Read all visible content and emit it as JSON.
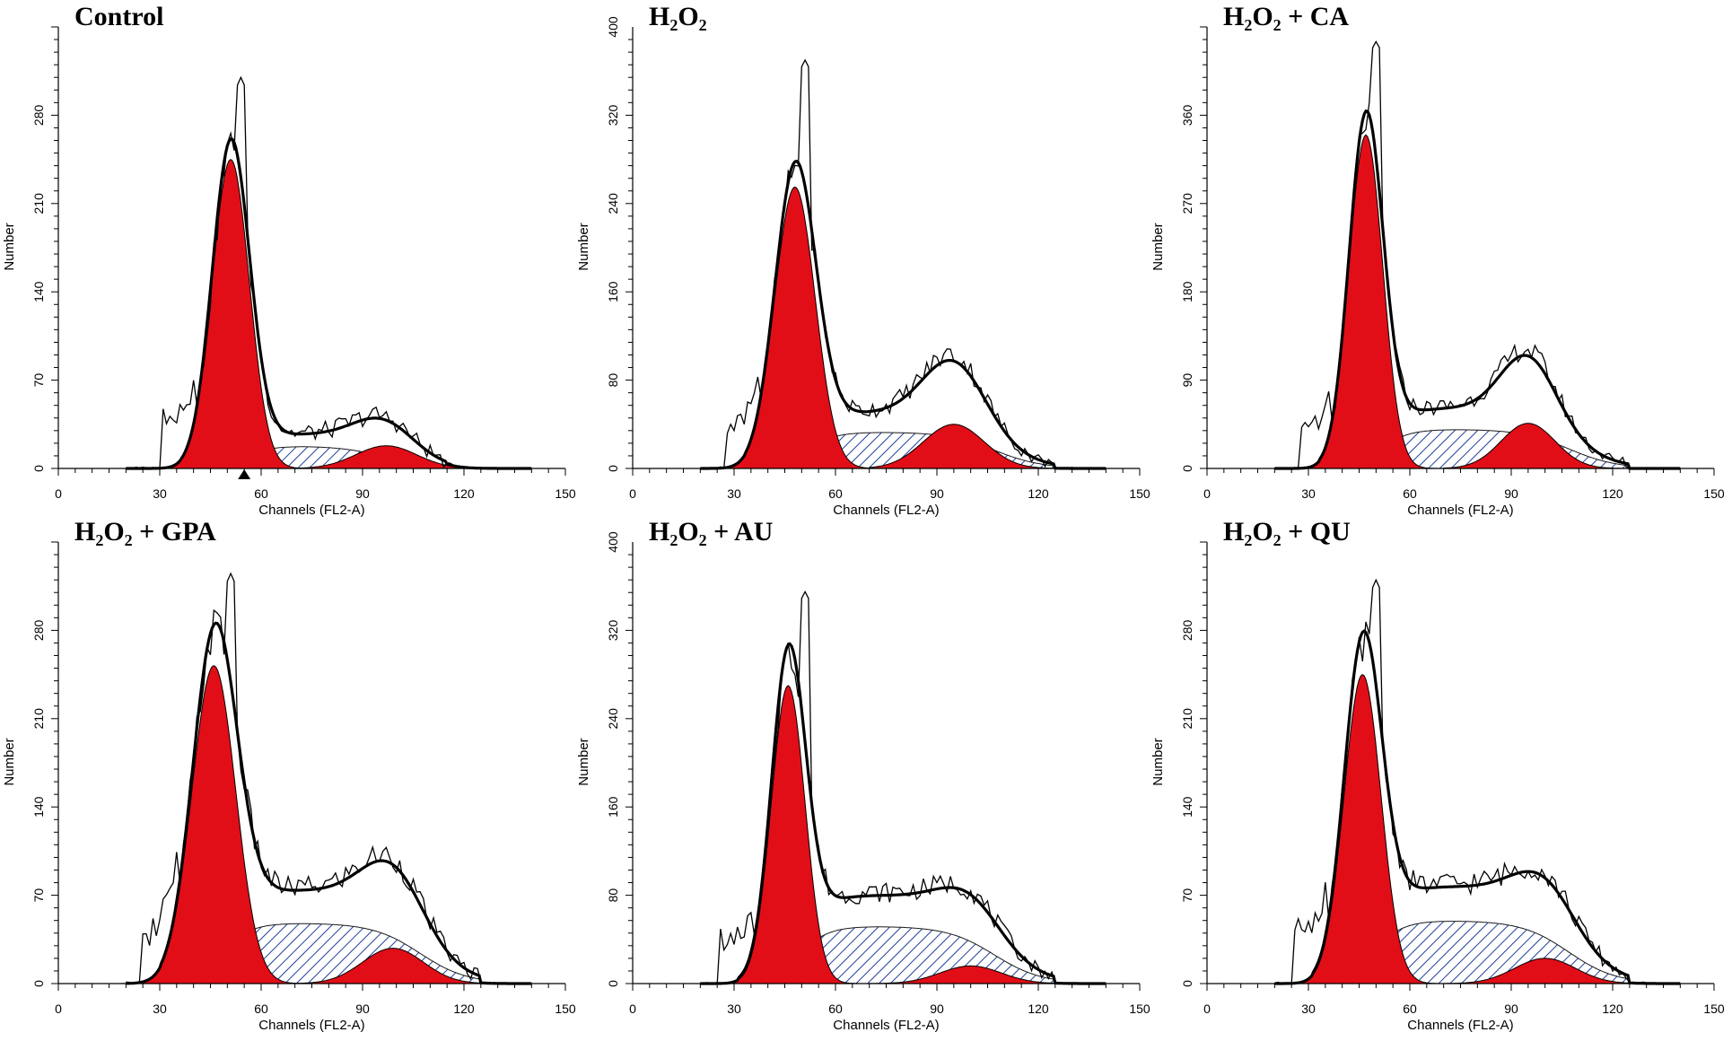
{
  "chart_data": [
    {
      "type": "area",
      "title": "Control",
      "xlabel": "Channels (FL2-A)",
      "ylabel": "Number",
      "xlim": [
        0,
        150
      ],
      "xticks": [
        "0",
        "30",
        "60",
        "90",
        "120",
        "150"
      ],
      "ylim": [
        0,
        350
      ],
      "yticks": [
        "0",
        "70",
        "140",
        "210",
        "280"
      ],
      "g1": {
        "peak": 245,
        "center": 51,
        "sigma": 5.5
      },
      "s": {
        "height": 18,
        "start": 36,
        "end": 115
      },
      "g2": {
        "peak": 18,
        "center": 97,
        "sigma": 9
      },
      "raw_peak": {
        "x": 54,
        "y": 310
      },
      "fit_peak": 258,
      "marker_x": 55
    },
    {
      "type": "area",
      "title": "H₂O₂",
      "xlabel": "Channels (FL2-A)",
      "ylabel": "Number",
      "xlim": [
        0,
        150
      ],
      "xticks": [
        "0",
        "30",
        "60",
        "90",
        "120",
        "150"
      ],
      "ylim": [
        0,
        400
      ],
      "yticks": [
        "0",
        "80",
        "160",
        "240",
        "320",
        "400"
      ],
      "g1": {
        "peak": 255,
        "center": 48,
        "sigma": 6
      },
      "s": {
        "height": 33,
        "start": 33,
        "end": 125
      },
      "g2": {
        "peak": 40,
        "center": 95,
        "sigma": 9
      },
      "raw_peak": {
        "x": 51,
        "y": 370
      },
      "fit_peak": 272
    },
    {
      "type": "area",
      "title": "H₂O₂ + CA",
      "xlabel": "Channels (FL2-A)",
      "ylabel": "Number",
      "xlim": [
        0,
        150
      ],
      "xticks": [
        "0",
        "30",
        "60",
        "90",
        "120",
        "150"
      ],
      "ylim": [
        0,
        450
      ],
      "yticks": [
        "0",
        "90",
        "180",
        "270",
        "360"
      ],
      "g1": {
        "peak": 340,
        "center": 47,
        "sigma": 5
      },
      "s": {
        "height": 40,
        "start": 33,
        "end": 125
      },
      "g2": {
        "peak": 46,
        "center": 95,
        "sigma": 8
      },
      "raw_peak": {
        "x": 50,
        "y": 435
      },
      "fit_peak": 358
    },
    {
      "type": "area",
      "title": "H₂O₂ + GPA",
      "xlabel": "Channels (FL2-A)",
      "ylabel": "Number",
      "xlim": [
        0,
        150
      ],
      "xticks": [
        "0",
        "30",
        "60",
        "90",
        "120",
        "150"
      ],
      "ylim": [
        0,
        350
      ],
      "yticks": [
        "0",
        "70",
        "140",
        "210",
        "280"
      ],
      "g1": {
        "peak": 252,
        "center": 46,
        "sigma": 6.5
      },
      "s": {
        "height": 48,
        "start": 30,
        "end": 125
      },
      "g2": {
        "peak": 28,
        "center": 99,
        "sigma": 9
      },
      "raw_peak": {
        "x": 51,
        "y": 325
      },
      "fit_peak": 275
    },
    {
      "type": "area",
      "title": "H₂O₂ + AU",
      "xlabel": "Channels (FL2-A)",
      "ylabel": "Number",
      "xlim": [
        0,
        150
      ],
      "xticks": [
        "0",
        "30",
        "60",
        "90",
        "120",
        "150"
      ],
      "ylim": [
        0,
        400
      ],
      "yticks": [
        "0",
        "80",
        "160",
        "240",
        "320",
        "400"
      ],
      "g1": {
        "peak": 270,
        "center": 46,
        "sigma": 5
      },
      "s": {
        "height": 52,
        "start": 31,
        "end": 125
      },
      "g2": {
        "peak": 16,
        "center": 100,
        "sigma": 9
      },
      "raw_peak": {
        "x": 51,
        "y": 355
      },
      "fit_peak": 298
    },
    {
      "type": "area",
      "title": "H₂O₂ + QU",
      "xlabel": "Channels (FL2-A)",
      "ylabel": "Number",
      "xlim": [
        0,
        150
      ],
      "xticks": [
        "0",
        "30",
        "60",
        "90",
        "120",
        "150"
      ],
      "ylim": [
        0,
        350
      ],
      "yticks": [
        "0",
        "70",
        "140",
        "210",
        "280"
      ],
      "g1": {
        "peak": 245,
        "center": 46,
        "sigma": 5.5
      },
      "s": {
        "height": 50,
        "start": 31,
        "end": 125
      },
      "g2": {
        "peak": 20,
        "center": 100,
        "sigma": 9
      },
      "raw_peak": {
        "x": 50,
        "y": 320
      },
      "fit_peak": 270
    }
  ]
}
